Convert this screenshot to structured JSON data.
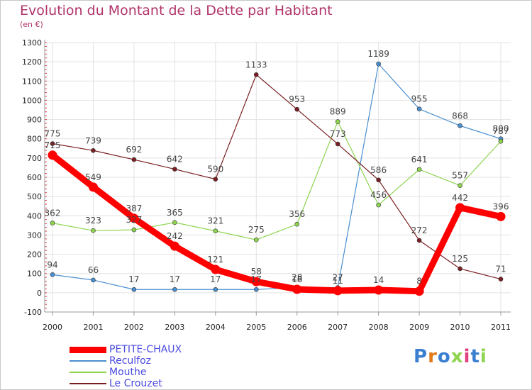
{
  "title": "Evolution du Montant de la Dette par Habitant",
  "subtitle": "(en €)",
  "logo": "Proxiti",
  "chart_data": {
    "type": "line",
    "title": "Evolution du Montant de la Dette par Habitant",
    "subtitle": "(en €)",
    "xlabel": "",
    "ylabel": "",
    "ylim": [
      -100,
      1300
    ],
    "yticks": [
      -100,
      0,
      100,
      200,
      300,
      400,
      500,
      600,
      700,
      800,
      900,
      1000,
      1100,
      1200,
      1300
    ],
    "x": [
      "2000",
      "2001",
      "2002",
      "2003",
      "2004",
      "2005",
      "2006",
      "2007",
      "2008",
      "2009",
      "2010",
      "2011"
    ],
    "grid": true,
    "legend_position": "bottom-left",
    "series": [
      {
        "name": "PETITE-CHAUX",
        "color": "#ff0000",
        "values": [
          715,
          549,
          387,
          242,
          121,
          58,
          18,
          11,
          14,
          8,
          442,
          396
        ]
      },
      {
        "name": "Reculfoz",
        "color": "#4a8fd0",
        "values": [
          94,
          66,
          17,
          17,
          17,
          17,
          28,
          27,
          1189,
          955,
          868,
          800
        ]
      },
      {
        "name": "Mouthe",
        "color": "#8ed44e",
        "values": [
          362,
          323,
          327,
          365,
          321,
          275,
          356,
          889,
          456,
          641,
          557,
          787
        ]
      },
      {
        "name": "Le Crouzet",
        "color": "#7a1e22",
        "values": [
          775,
          739,
          692,
          642,
          590,
          1133,
          953,
          773,
          586,
          272,
          125,
          71
        ]
      }
    ],
    "data_labels": [
      {
        "series": "PETITE-CHAUX",
        "labels": [
          "715",
          "549",
          "387",
          "242",
          "121",
          "58",
          "18",
          "11",
          "14",
          "8",
          "442",
          "396"
        ]
      },
      {
        "series": "Reculfoz",
        "labels": [
          "94",
          "66",
          "17",
          "17",
          "17",
          "17",
          "28",
          "27",
          "1189",
          "955",
          "868",
          "800"
        ]
      },
      {
        "series": "Mouthe",
        "labels": [
          "362",
          "323",
          "327",
          "365",
          "321",
          "275",
          "356",
          "889",
          "456",
          "641",
          "557",
          "787"
        ]
      },
      {
        "series": "Le Crouzet",
        "labels": [
          "775",
          "739",
          "692",
          "642",
          "590",
          "1133",
          "953",
          "773",
          "586",
          "272",
          "125",
          "71"
        ]
      }
    ]
  }
}
